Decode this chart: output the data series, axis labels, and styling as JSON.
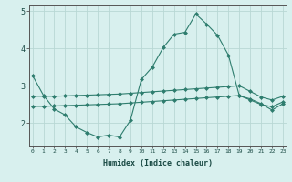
{
  "xlabel": "Humidex (Indice chaleur)",
  "x": [
    0,
    1,
    2,
    3,
    4,
    5,
    6,
    7,
    8,
    9,
    10,
    11,
    12,
    13,
    14,
    15,
    16,
    17,
    18,
    19,
    20,
    21,
    22,
    23
  ],
  "line1": [
    3.28,
    2.75,
    2.38,
    2.22,
    1.9,
    1.75,
    1.63,
    1.68,
    1.63,
    2.08,
    3.17,
    3.5,
    4.02,
    4.38,
    4.43,
    4.92,
    4.65,
    4.35,
    3.82,
    2.73,
    2.65,
    2.52,
    2.35,
    2.52
  ],
  "line2": [
    2.72,
    2.72,
    2.72,
    2.73,
    2.74,
    2.75,
    2.76,
    2.77,
    2.78,
    2.8,
    2.82,
    2.84,
    2.86,
    2.88,
    2.9,
    2.92,
    2.94,
    2.96,
    2.98,
    3.0,
    2.85,
    2.7,
    2.62,
    2.72
  ],
  "line3": [
    2.45,
    2.45,
    2.46,
    2.47,
    2.48,
    2.49,
    2.5,
    2.51,
    2.52,
    2.54,
    2.56,
    2.58,
    2.6,
    2.62,
    2.64,
    2.66,
    2.68,
    2.7,
    2.72,
    2.74,
    2.62,
    2.5,
    2.44,
    2.57
  ],
  "line_color": "#2e7d6e",
  "bg_color": "#d8f0ee",
  "grid_color": "#b8d8d4",
  "ylim": [
    1.4,
    5.15
  ],
  "yticks": [
    2,
    3,
    4,
    5
  ],
  "xticks": [
    0,
    1,
    2,
    3,
    4,
    5,
    6,
    7,
    8,
    9,
    10,
    11,
    12,
    13,
    14,
    15,
    16,
    17,
    18,
    19,
    20,
    21,
    22,
    23
  ]
}
